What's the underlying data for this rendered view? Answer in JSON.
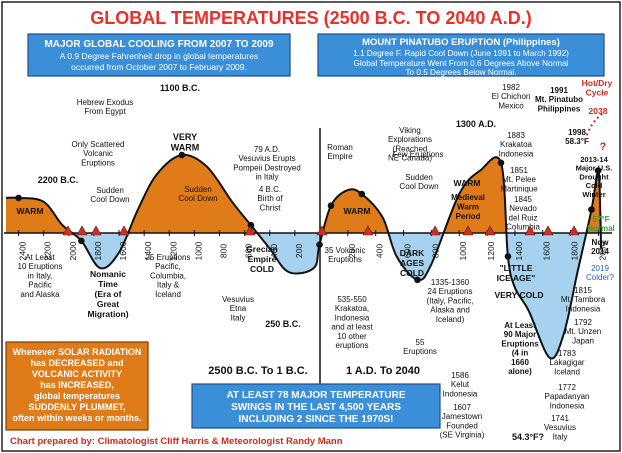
{
  "chart_data": {
    "type": "area",
    "title": "GLOBAL TEMPERATURES (2500 B.C. TO 2040 A.D.)",
    "x_tick_labels_bc": [
      "2400",
      "2200",
      "2000",
      "1800",
      "1600",
      "1400",
      "1200",
      "1000",
      "800",
      "600",
      "400",
      "200"
    ],
    "x_tick_labels_ad": [
      "200",
      "400",
      "600",
      "800",
      "1000",
      "1200",
      "1400",
      "1600",
      "1800",
      "2000"
    ],
    "panel_labels": {
      "bc": "2500 B.C. To 1 B.C.",
      "ad": "1 A.D. To 2040"
    },
    "series": [
      {
        "x": [
          "2500 B.C.",
          "2400 B.C.",
          "2200 B.C.",
          "2050 B.C.",
          "1900 B.C.",
          "1750 B.C.",
          "1600 B.C.",
          "1450 B.C.",
          "1300 B.C.",
          "1100 B.C.",
          "900 B.C.",
          "700 B.C.",
          "550 B.C.",
          "400 B.C.",
          "250 B.C.",
          "50 B.C.",
          "4 B.C.",
          "79 A.D.",
          "200 A.D.",
          "300 A.D.",
          "450 A.D.",
          "550 A.D.",
          "700 A.D.",
          "800 A.D.",
          "1000 A.D.",
          "1150 A.D.",
          "1300 A.D.",
          "1350 A.D.",
          "1400 A.D.",
          "1500 A.D.",
          "1650 A.D.",
          "1750 A.D.",
          "1850 A.D.",
          "1950 A.D.",
          "1998 A.D.",
          "2013 A.D.",
          "2019 A.D."
        ],
        "y": [
          0.45,
          0.45,
          0.4,
          0.1,
          -0.1,
          -0.45,
          -0.25,
          0.3,
          0.75,
          1.0,
          0.85,
          0.4,
          0.1,
          -0.2,
          -0.5,
          -0.45,
          -0.15,
          0.35,
          0.55,
          0.5,
          0.2,
          -0.3,
          -0.6,
          -0.4,
          0.5,
          0.8,
          0.9,
          -0.3,
          -0.7,
          -1.0,
          -1.6,
          -1.3,
          -0.5,
          0.3,
          0.8,
          0.3,
          -0.2
        ]
      }
    ],
    "region_labels": [
      {
        "text": "WARM"
      },
      {
        "text": "VERY WARM"
      },
      {
        "text": "Nomanic Time (Era of Great Migration)"
      },
      {
        "text": "Grecian Empire COLD"
      },
      {
        "text": "WARM"
      },
      {
        "text": "DARK AGES COLD"
      },
      {
        "text": "WARM"
      },
      {
        "text": "Medieval Warm Period"
      },
      {
        "text": "\"LITTLE ICE AGE\""
      },
      {
        "text": "VERY COLD"
      }
    ],
    "annotations": [
      "2200 B.C.",
      "1100 B.C.",
      "Hebrew Exodus From Egypt",
      "Only Scattered Volcanic Eruptions",
      "Sudden Cool Down",
      "Sudden Cool Down",
      "At Least 10 Eruptions in Italy, Pacific and Alaska",
      "25 Eruptions Pacific, Columbia, Italy & Iceland",
      "79 A.D. Vesuvius Erupts Pompeii Destroyed in Italy",
      "4 B.C. Birth of Christ",
      "Vesuvius Etna Italy",
      "250 B.C.",
      "Roman Empire",
      "35 Volcanic Eruptions",
      "535-550 Krakatoa, Indonesia and at least 10 other eruptions",
      "Viking Explorations (Reached NE Canada)",
      "1300 A.D.",
      "Few Eruptions",
      "Sudden Cool Down",
      "1335-1360 24 Eruptions (Italy, Pacific, Alaska and Iceland)",
      "55 Eruptions",
      "1982 El Chichon Mexico",
      "1883 Krakatoa Indonesia",
      "1851 Mt. Pelee Martinique",
      "1845 Nevado del Ruiz Columbia",
      "1991 Mt. Pinatubo Philippines",
      "1998 58.3°F",
      "2013-14 Major U.S. Drought Cold Winter",
      "57°F Normal",
      "Now 2014",
      "2019 Colder?",
      "Hot/Dry Cycle",
      "2038",
      "?",
      "1815 Mt. Tambora Indonesia",
      "1792 Mt. Unzen Japan",
      "1783 Lakagigar Iceland",
      "1772 Papadanyan Indonesia",
      "1741 Vesuvius Italy",
      "At Least 90 Major Eruptions (4 in 1660 alone)",
      "1586 Kelut Indonesia",
      "1607 Jamestown Founded (SE Virginia)",
      "54.3°F?"
    ],
    "ylabel": "",
    "xlabel": ""
  },
  "boxes": {
    "cooling_title": "MAJOR GLOBAL COOLING FROM 2007 TO 2009",
    "cooling_text_1": "A 0.9 Degree Fahrenheit drop in global temperatures",
    "cooling_text_2": "occurred from October 2007 to February 2009.",
    "pinatubo_title": "MOUNT PINATUBO ERUPTION (Philippines)",
    "pinatubo_text_1": "1.1 Degree F. Rapid Cool Down (June 1991 to March 1992)",
    "pinatubo_text_2": "Global Temperature Went From 0.6 Degrees Above Normal",
    "pinatubo_text_3": "To 0.5 Degrees Below Normal.",
    "solar_lines": [
      "Whenever SOLAR RADIATION",
      "has DECREASED and",
      "VOLCANIC ACTIVITY",
      "has INCREASED,",
      "global temperatures",
      "SUDDENLY PLUMMET,",
      "often within weeks or months."
    ],
    "swings_lines": [
      "AT LEAST 78 MAJOR TEMPERATURE",
      "SWINGS IN THE LAST 4,500 YEARS",
      "INCLUDING 2 SINCE THE 1970S!"
    ],
    "credit": "Chart prepared by: Climatologist Cliff Harris & Meteorologist Randy Mann"
  },
  "colors": {
    "warm": "#e07b1a",
    "cold": "#a6d2ef",
    "title": "#e8302a",
    "box_blue": "#3b8fd9",
    "credit": "#d2291e",
    "hot_cycle": "#d2291e",
    "normal": "#2e9e3a"
  }
}
